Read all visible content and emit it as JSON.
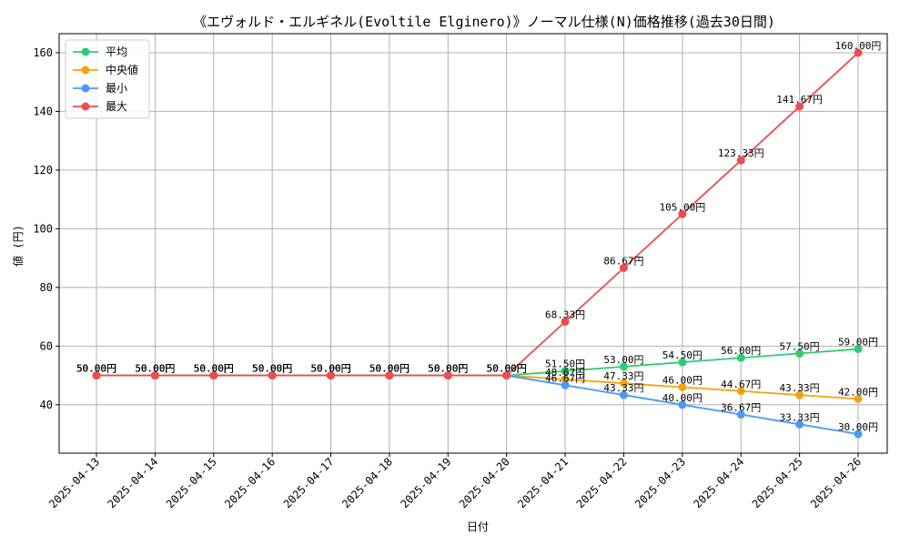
{
  "chart_data": {
    "type": "line",
    "title": "《エヴォルド・エルギネル(Evoltile Elginero)》ノーマル仕様(N)価格推移(過去30日間)",
    "xlabel": "日付",
    "ylabel": "値 (円)",
    "ylim": [
      23.5,
      166.5
    ],
    "yticks": [
      40,
      60,
      80,
      100,
      120,
      140,
      160
    ],
    "grid": true,
    "legend_position": "top-left",
    "value_suffix": "円",
    "x": [
      "2025-04-13",
      "2025-04-14",
      "2025-04-15",
      "2025-04-16",
      "2025-04-17",
      "2025-04-18",
      "2025-04-19",
      "2025-04-20",
      "2025-04-21",
      "2025-04-22",
      "2025-04-23",
      "2025-04-24",
      "2025-04-25",
      "2025-04-26"
    ],
    "series": [
      {
        "name": "平均",
        "color": "#2ecc71",
        "values": [
          50.0,
          50.0,
          50.0,
          50.0,
          50.0,
          50.0,
          50.0,
          50.0,
          51.5,
          53.0,
          54.5,
          56.0,
          57.5,
          59.0
        ]
      },
      {
        "name": "中央値",
        "color": "#f5a30b",
        "values": [
          50.0,
          50.0,
          50.0,
          50.0,
          50.0,
          50.0,
          50.0,
          50.0,
          48.67,
          47.33,
          46.0,
          44.67,
          43.33,
          42.0
        ]
      },
      {
        "name": "最小",
        "color": "#4a9af5",
        "values": [
          50.0,
          50.0,
          50.0,
          50.0,
          50.0,
          50.0,
          50.0,
          50.0,
          46.67,
          43.33,
          40.0,
          36.67,
          33.33,
          30.0
        ]
      },
      {
        "name": "最大",
        "color": "#ef4c4c",
        "values": [
          50.0,
          50.0,
          50.0,
          50.0,
          50.0,
          50.0,
          50.0,
          50.0,
          68.33,
          86.67,
          105.0,
          123.33,
          141.67,
          160.0
        ]
      }
    ]
  }
}
